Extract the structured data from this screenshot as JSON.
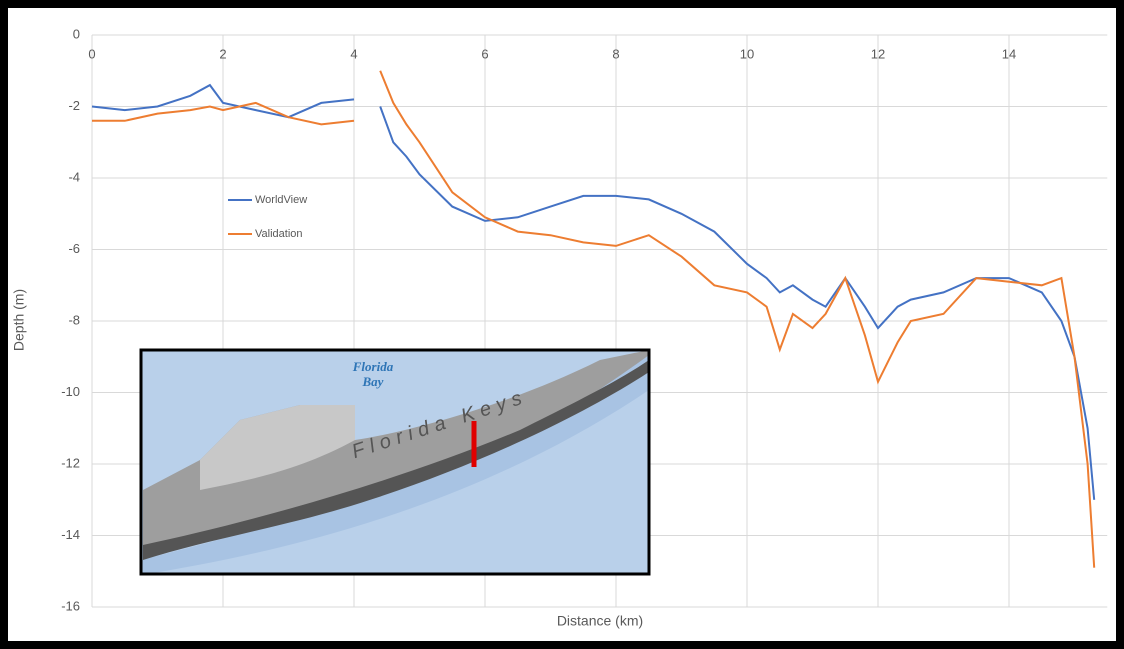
{
  "chart_data": {
    "type": "line",
    "x_label": "Distance (km)",
    "y_label": "Depth (m)",
    "annotations": [
      "Florida Bay",
      "Florida Keys"
    ],
    "x": [
      0,
      0.5,
      1,
      1.5,
      1.8,
      2,
      2.5,
      3,
      3.5,
      4,
      4.2,
      4.4,
      4.6,
      4.8,
      5,
      5.5,
      6,
      6.5,
      7,
      7.5,
      8,
      8.5,
      9,
      9.5,
      10,
      10.3,
      10.5,
      10.7,
      11,
      11.2,
      11.5,
      11.8,
      12,
      12.3,
      12.5,
      13,
      13.5,
      14,
      14.5,
      14.8,
      15,
      15.2,
      15.3
    ],
    "series": [
      {
        "name": "WorldView",
        "color": "#4472c4",
        "values": [
          -2.0,
          -2.1,
          -2.0,
          -1.7,
          -1.4,
          -1.9,
          -2.1,
          -2.3,
          -1.9,
          -1.8,
          null,
          -2.0,
          -3.0,
          -3.4,
          -3.9,
          -4.8,
          -5.2,
          -5.1,
          -4.8,
          -4.5,
          -4.5,
          -4.6,
          -5.0,
          -5.5,
          -6.4,
          -6.8,
          -7.2,
          -7.0,
          -7.4,
          -7.6,
          -6.8,
          -7.6,
          -8.2,
          -7.6,
          -7.4,
          -7.2,
          -6.8,
          -6.8,
          -7.2,
          -8.0,
          -9.0,
          -11.0,
          -13.0
        ]
      },
      {
        "name": "Validation",
        "color": "#ed7d31",
        "values": [
          -2.4,
          -2.4,
          -2.2,
          -2.1,
          -2.0,
          -2.1,
          -1.9,
          -2.3,
          -2.5,
          -2.4,
          null,
          -1.0,
          -1.9,
          -2.5,
          -3.0,
          -4.4,
          -5.1,
          -5.5,
          -5.6,
          -5.8,
          -5.9,
          -5.6,
          -6.2,
          -7.0,
          -7.2,
          -7.6,
          -8.8,
          -7.8,
          -8.2,
          -7.8,
          -6.8,
          -8.4,
          -9.7,
          -8.6,
          -8.0,
          -7.8,
          -6.8,
          -6.9,
          -7.0,
          -6.8,
          -9.0,
          -12.0,
          -14.9
        ]
      }
    ],
    "xlim": [
      0,
      15.5
    ],
    "ylim": [
      -16,
      0
    ],
    "xticks": [
      0,
      2,
      4,
      6,
      8,
      10,
      12,
      14
    ],
    "yticks": [
      0,
      -2,
      -4,
      -6,
      -8,
      -10,
      -12,
      -14,
      -16
    ],
    "grid": true
  }
}
